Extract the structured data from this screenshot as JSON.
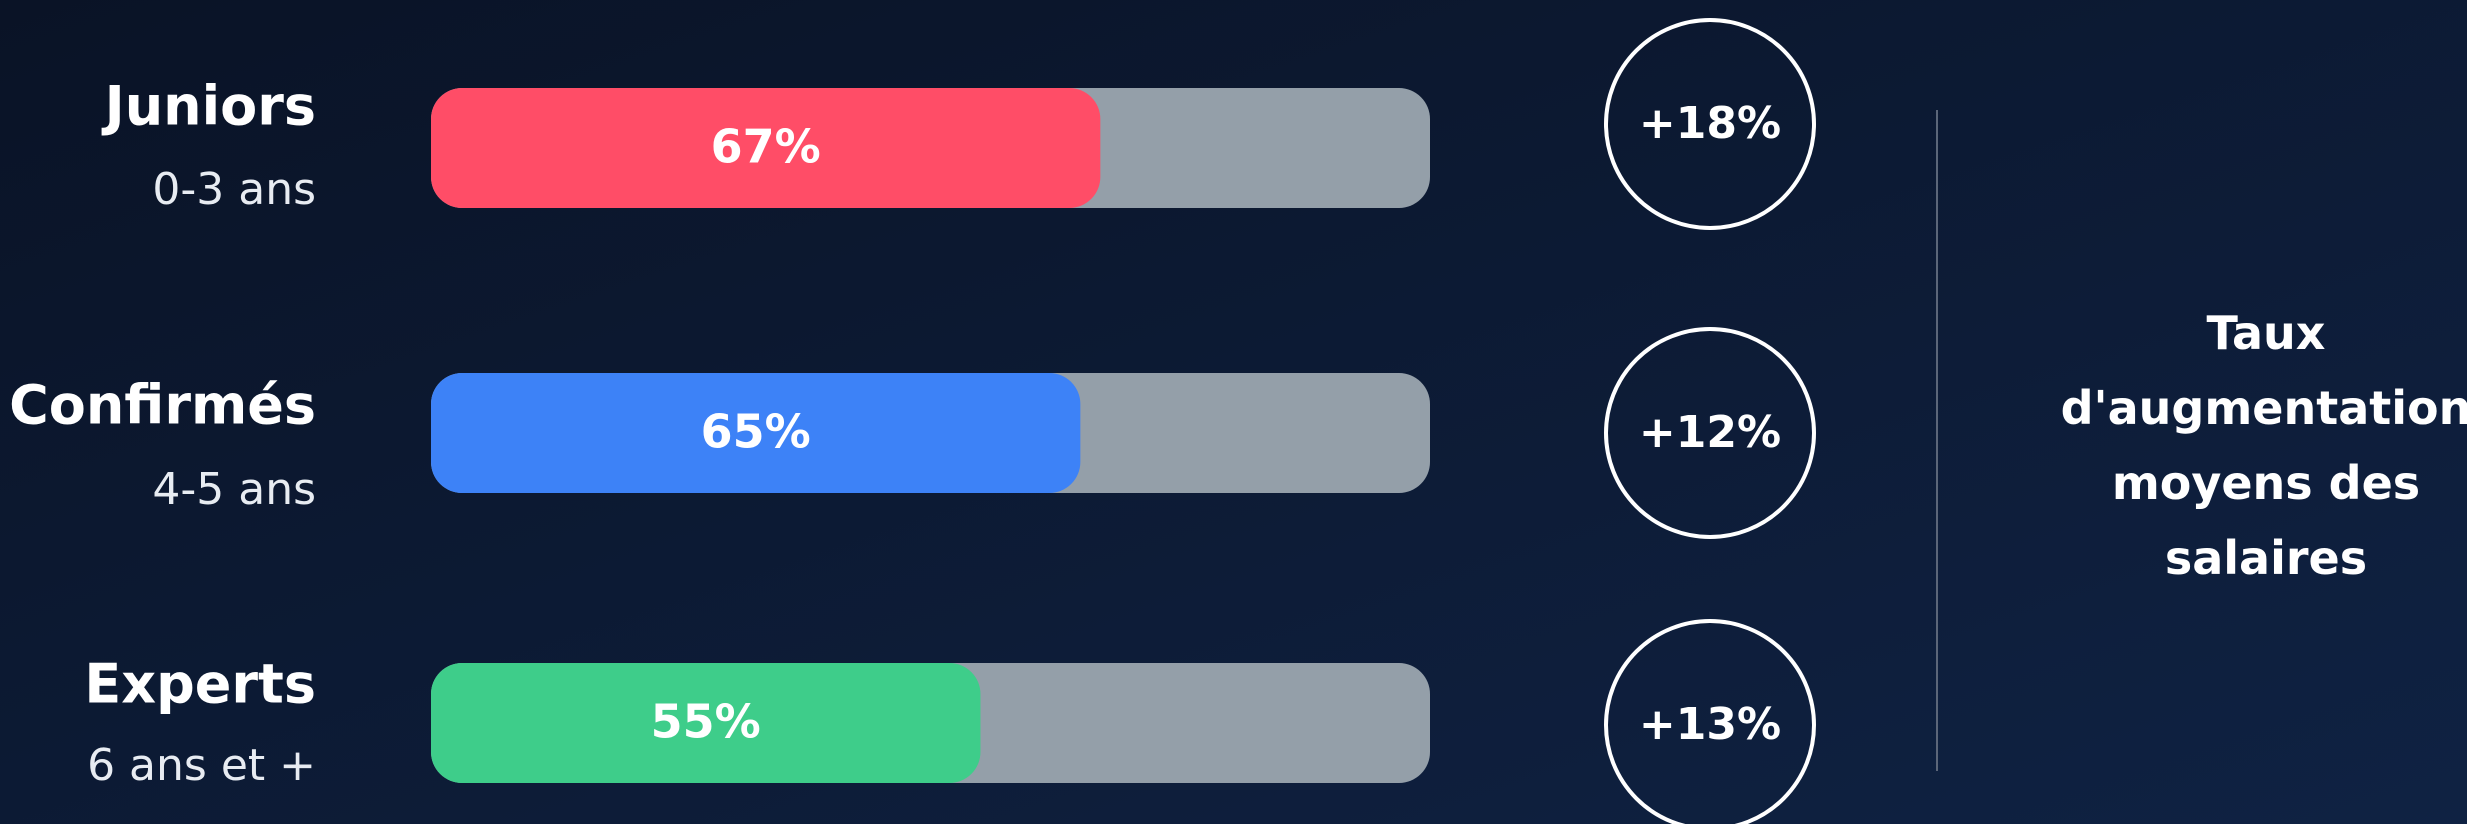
{
  "chart_data": {
    "type": "bar",
    "categories": [
      "Juniors",
      "Confirmés",
      "Experts"
    ],
    "category_subtitles": [
      "0-3 ans",
      "4-5 ans",
      "6 ans et +"
    ],
    "series": [
      {
        "colors": [
          "#ff4d67",
          "#3d82f7",
          "#3ecd8a"
        ],
        "values": [
          67,
          65,
          55
        ],
        "value_labels": [
          "67%",
          "65%",
          "55%"
        ]
      }
    ],
    "xlim": [
      0,
      100
    ],
    "track_color": "#949fa9",
    "increase_labels": [
      "+18%",
      "+12%",
      "+13%"
    ],
    "side_label": "Taux d'augmentation moyens des salaires"
  }
}
